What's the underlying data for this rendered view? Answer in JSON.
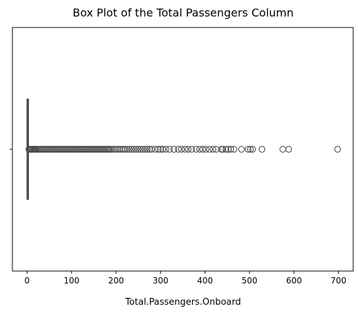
{
  "chart_data": {
    "type": "box",
    "orientation": "horizontal",
    "title": "Box Plot of the Total Passengers Column",
    "xlabel": "Total.Passengers.Onboard",
    "ylabel": "",
    "xlim": [
      -33,
      733
    ],
    "xticks": [
      0,
      100,
      200,
      300,
      400,
      500,
      600,
      700
    ],
    "xtick_labels": [
      "0",
      "100",
      "200",
      "300",
      "400",
      "500",
      "600",
      "700"
    ],
    "yticks": [
      ""
    ],
    "grid": false,
    "box": {
      "whisker_low": 0,
      "q1": 1,
      "median": 1,
      "q3": 2,
      "whisker_high": 3
    },
    "outliers": [
      4,
      6,
      8,
      10,
      12,
      14,
      16,
      18,
      20,
      23,
      26,
      29,
      32,
      35,
      38,
      41,
      44,
      47,
      50,
      53,
      56,
      59,
      62,
      65,
      68,
      71,
      74,
      77,
      80,
      83,
      86,
      89,
      92,
      95,
      98,
      101,
      104,
      107,
      110,
      113,
      116,
      119,
      122,
      125,
      128,
      131,
      134,
      137,
      140,
      143,
      146,
      149,
      152,
      155,
      158,
      161,
      164,
      167,
      170,
      173,
      176,
      179,
      182,
      185,
      188,
      192,
      196,
      200,
      204,
      208,
      212,
      216,
      220,
      225,
      230,
      235,
      240,
      245,
      250,
      255,
      260,
      265,
      270,
      275,
      280,
      288,
      295,
      300,
      305,
      312,
      320,
      330,
      340,
      347,
      355,
      362,
      370,
      380,
      388,
      395,
      402,
      410,
      418,
      425,
      437,
      440,
      447,
      452,
      458,
      465,
      482,
      497,
      502,
      507,
      528,
      575,
      588,
      698
    ],
    "colors": {
      "box": "#4a4a4a",
      "axis": "#000000"
    }
  }
}
